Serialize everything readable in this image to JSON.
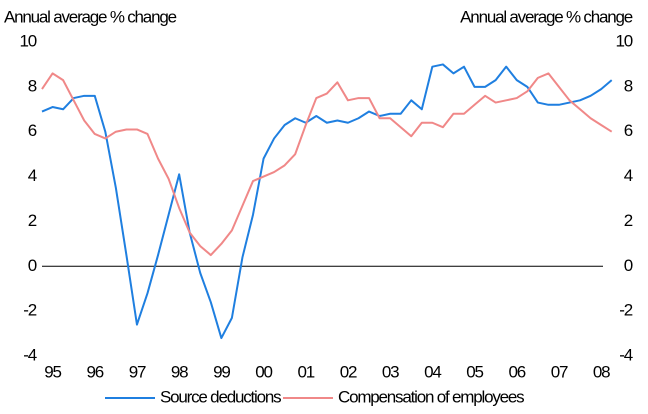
{
  "chart_data": {
    "type": "line",
    "y_label": "Annual average % change",
    "y2_label": "Annual average % change",
    "categories": [
      null,
      "95",
      null,
      null,
      null,
      "96",
      null,
      null,
      null,
      "97",
      null,
      null,
      null,
      "98",
      null,
      null,
      null,
      "99",
      null,
      null,
      null,
      "00",
      null,
      null,
      null,
      "01",
      null,
      null,
      null,
      "02",
      null,
      null,
      null,
      "03",
      null,
      null,
      null,
      "04",
      null,
      null,
      null,
      "05",
      null,
      null,
      null,
      "06",
      null,
      null,
      null,
      "07",
      null,
      null,
      null,
      "08",
      null
    ],
    "series": [
      {
        "name": "Source deductions",
        "color": "#1f7fe0",
        "values": [
          6.9,
          7.1,
          7.0,
          7.5,
          7.6,
          7.6,
          6.0,
          3.5,
          0.5,
          -2.6,
          -1.2,
          0.5,
          2.3,
          4.1,
          1.5,
          -0.3,
          -1.6,
          -3.2,
          -2.3,
          0.4,
          2.3,
          4.8,
          5.7,
          6.3,
          6.6,
          6.4,
          6.7,
          6.4,
          6.5,
          6.4,
          6.6,
          6.9,
          6.7,
          6.8,
          6.8,
          7.4,
          7.0,
          8.9,
          9.0,
          8.6,
          8.9,
          8.0,
          8.0,
          8.3,
          8.9,
          8.3,
          8.0,
          7.3,
          7.2,
          7.2,
          7.3,
          7.4,
          7.6,
          7.9,
          8.3
        ]
      },
      {
        "name": "Compensation of employees",
        "color": "#f08888",
        "values": [
          7.9,
          8.6,
          8.3,
          7.4,
          6.5,
          5.9,
          5.7,
          6.0,
          6.1,
          6.1,
          5.9,
          4.8,
          3.9,
          2.6,
          1.5,
          0.9,
          0.5,
          1.0,
          1.6,
          2.7,
          3.8,
          4.0,
          4.2,
          4.5,
          5.0,
          6.3,
          7.5,
          7.7,
          8.2,
          7.4,
          7.5,
          7.5,
          6.6,
          6.6,
          6.2,
          5.8,
          6.4,
          6.4,
          6.2,
          6.8,
          6.8,
          7.2,
          7.6,
          7.3,
          7.4,
          7.5,
          7.8,
          8.4,
          8.6,
          8.0,
          7.4,
          7.0,
          6.6,
          6.3,
          6.0
        ]
      }
    ],
    "ylim": [
      -4,
      10
    ],
    "yticks": [
      -4,
      -2,
      0,
      2,
      4,
      6,
      8,
      10
    ],
    "y2lim": [
      -4,
      10
    ],
    "y2ticks": [
      -4,
      -2,
      0,
      2,
      4,
      6,
      8,
      10
    ]
  }
}
